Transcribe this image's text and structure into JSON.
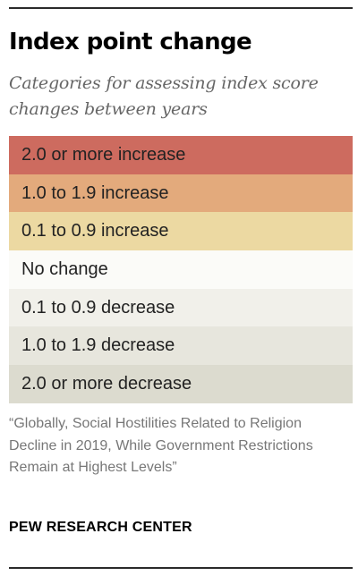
{
  "title": "Index point change",
  "subtitle": "Categories for assessing index score changes between years",
  "legend": [
    {
      "label": "2.0 or more increase",
      "color": "#cd6b5f"
    },
    {
      "label": "1.0 to 1.9 increase",
      "color": "#e3aa7c"
    },
    {
      "label": "0.1 to 0.9 increase",
      "color": "#ecd9a2"
    },
    {
      "label": "No change",
      "color": "#fbfbf8"
    },
    {
      "label": "0.1 to 0.9 decrease",
      "color": "#f1f0ea"
    },
    {
      "label": "1.0 to 1.9 decrease",
      "color": "#e7e6dd"
    },
    {
      "label": "2.0 or more decrease",
      "color": "#dcdbcf"
    }
  ],
  "source": "“Globally, Social Hostilities Related to Religion Decline in 2019, While Government Restrictions Remain at Highest Levels”",
  "brand": "PEW RESEARCH CENTER"
}
